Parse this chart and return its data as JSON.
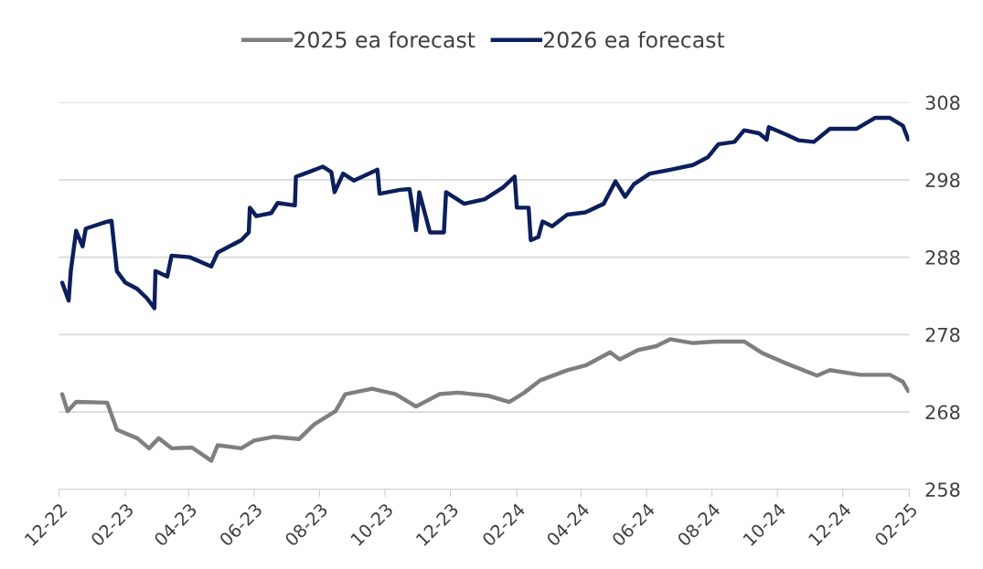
{
  "chart_data": {
    "type": "line",
    "ylim": [
      258,
      308
    ],
    "yticks": [
      258,
      268,
      278,
      288,
      298,
      308
    ],
    "xlim": [
      "2022-12-01",
      "2025-02-01"
    ],
    "xticks": [
      {
        "value": "2022-12-01",
        "label": "12-22"
      },
      {
        "value": "2023-02-01",
        "label": "02-23"
      },
      {
        "value": "2023-04-01",
        "label": "04-23"
      },
      {
        "value": "2023-06-01",
        "label": "06-23"
      },
      {
        "value": "2023-08-01",
        "label": "08-23"
      },
      {
        "value": "2023-10-01",
        "label": "10-23"
      },
      {
        "value": "2023-12-01",
        "label": "12-23"
      },
      {
        "value": "2024-02-01",
        "label": "02-24"
      },
      {
        "value": "2024-04-01",
        "label": "04-24"
      },
      {
        "value": "2024-06-01",
        "label": "06-24"
      },
      {
        "value": "2024-08-01",
        "label": "08-24"
      },
      {
        "value": "2024-10-01",
        "label": "10-24"
      },
      {
        "value": "2024-12-01",
        "label": "12-24"
      },
      {
        "value": "2025-02-01",
        "label": "02-25"
      }
    ],
    "grid": "y",
    "legend": "top",
    "marker": "none",
    "line_style": "solid",
    "series": [
      {
        "name": "2025 ea forecast",
        "color": "#7f7f7f",
        "x": [
          "2022-12-04",
          "2022-12-09",
          "2022-12-17",
          "2023-01-15",
          "2023-01-24",
          "2023-02-12",
          "2023-02-23",
          "2023-03-04",
          "2023-03-16",
          "2023-04-04",
          "2023-04-22",
          "2023-04-28",
          "2023-05-20",
          "2023-06-01",
          "2023-06-20",
          "2023-07-13",
          "2023-07-27",
          "2023-08-16",
          "2023-08-25",
          "2023-09-19",
          "2023-10-11",
          "2023-10-30",
          "2023-11-21",
          "2023-12-08",
          "2024-01-05",
          "2024-01-25",
          "2024-02-08",
          "2024-02-23",
          "2024-03-19",
          "2024-04-05",
          "2024-04-28",
          "2024-05-07",
          "2024-05-24",
          "2024-06-10",
          "2024-06-23",
          "2024-07-14",
          "2024-08-05",
          "2024-08-31",
          "2024-09-17",
          "2024-10-07",
          "2024-11-07",
          "2024-11-19",
          "2024-12-17",
          "2025-01-14",
          "2025-01-26",
          "2025-01-31"
        ],
        "values": [
          270.3,
          268.1,
          269.3,
          269.2,
          265.7,
          264.6,
          263.3,
          264.6,
          263.3,
          263.4,
          261.7,
          263.7,
          263.3,
          264.3,
          264.8,
          264.5,
          266.4,
          268.1,
          270.3,
          271.0,
          270.3,
          268.7,
          270.3,
          270.5,
          270.1,
          269.3,
          270.5,
          272.1,
          273.4,
          274.0,
          275.7,
          274.8,
          276.0,
          276.5,
          277.4,
          276.9,
          277.1,
          277.1,
          275.6,
          274.4,
          272.7,
          273.4,
          272.8,
          272.8,
          271.9,
          270.7
        ]
      },
      {
        "name": "2026 ea forecast",
        "color": "#0c1f5c",
        "x": [
          "2022-12-04",
          "2022-12-10",
          "2022-12-12",
          "2022-12-17",
          "2022-12-23",
          "2022-12-26",
          "2023-01-15",
          "2023-01-19",
          "2023-01-24",
          "2023-02-01",
          "2023-02-12",
          "2023-02-21",
          "2023-02-28",
          "2023-03-01",
          "2023-03-12",
          "2023-03-16",
          "2023-04-02",
          "2023-04-22",
          "2023-04-28",
          "2023-05-20",
          "2023-05-27",
          "2023-05-28",
          "2023-06-03",
          "2023-06-17",
          "2023-06-23",
          "2023-07-09",
          "2023-07-10",
          "2023-07-18",
          "2023-08-04",
          "2023-08-12",
          "2023-08-15",
          "2023-08-23",
          "2023-09-02",
          "2023-09-24",
          "2023-09-26",
          "2023-10-15",
          "2023-10-24",
          "2023-10-30",
          "2023-11-02",
          "2023-11-12",
          "2023-11-25",
          "2023-11-27",
          "2023-12-14",
          "2024-01-02",
          "2024-01-19",
          "2024-01-30",
          "2024-02-01",
          "2024-02-03",
          "2024-02-12",
          "2024-02-14",
          "2024-02-21",
          "2024-02-25",
          "2024-03-05",
          "2024-03-19",
          "2024-04-05",
          "2024-04-22",
          "2024-05-03",
          "2024-05-12",
          "2024-05-20",
          "2024-06-04",
          "2024-06-23",
          "2024-07-14",
          "2024-07-28",
          "2024-08-07",
          "2024-08-22",
          "2024-08-31",
          "2024-09-14",
          "2024-09-21",
          "2024-09-23",
          "2024-10-10",
          "2024-10-21",
          "2024-11-04",
          "2024-11-19",
          "2024-12-14",
          "2024-12-31",
          "2025-01-14",
          "2025-01-26",
          "2025-01-31"
        ],
        "values": [
          284.7,
          282.4,
          286.2,
          291.4,
          289.4,
          291.7,
          292.6,
          292.7,
          286.2,
          284.7,
          283.9,
          282.7,
          281.4,
          286.2,
          285.5,
          288.2,
          288.0,
          286.8,
          288.6,
          290.2,
          291.2,
          294.4,
          293.3,
          293.7,
          295.0,
          294.7,
          298.4,
          298.8,
          299.7,
          299.0,
          296.4,
          298.8,
          297.9,
          299.3,
          296.2,
          296.7,
          296.8,
          291.5,
          296.4,
          291.2,
          291.2,
          296.4,
          294.9,
          295.5,
          297.0,
          298.4,
          294.4,
          294.4,
          294.4,
          290.2,
          290.6,
          292.6,
          292.0,
          293.5,
          293.8,
          294.9,
          297.8,
          295.8,
          297.4,
          298.8,
          299.3,
          299.9,
          300.9,
          302.6,
          302.9,
          304.4,
          304.0,
          303.2,
          304.8,
          303.8,
          303.1,
          302.9,
          304.6,
          304.6,
          306.0,
          306.0,
          305.0,
          303.2
        ]
      }
    ]
  }
}
